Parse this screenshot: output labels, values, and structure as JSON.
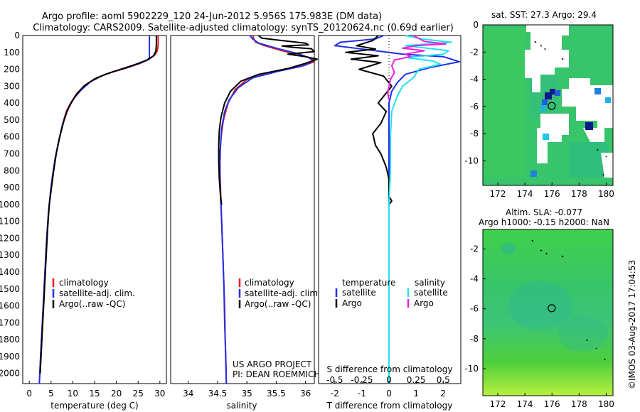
{
  "header": {
    "line1": "Argo profile: aoml 5902229_120 24-Jun-2012 5.956S 175.983E (DM data)",
    "line2": "Climatology: CARS2009. Satellite-adjusted climatology: synTS_20120624.nc (0.69d earlier)"
  },
  "colors": {
    "climatology": "#e81a1a",
    "satellite": "#1f2fe8",
    "argo": "#000000",
    "sal_satellite": "#20e0f0",
    "sal_argo": "#ee22dd"
  },
  "depth_axis": {
    "ticks": [
      0,
      100,
      200,
      300,
      400,
      500,
      600,
      700,
      800,
      900,
      1000,
      1100,
      1200,
      1300,
      1400,
      1500,
      1600,
      1700,
      1800,
      1900,
      2000
    ],
    "ylim": [
      0,
      2060
    ]
  },
  "chart_data": [
    {
      "type": "line",
      "id": "temperature",
      "xlabel": "temperature (deg C)",
      "xlim": [
        -1.5,
        31.5
      ],
      "xticks": [
        0,
        5,
        10,
        15,
        20,
        25,
        30
      ],
      "xtick_labels": [
        "0",
        "5",
        "10",
        "15",
        "20",
        "25",
        "30"
      ],
      "legend": [
        "climatology",
        "satellite-adj. clim.",
        "Argo(..raw -QC)"
      ],
      "series": [
        {
          "name": "climatology",
          "color": "#e81a1a",
          "points": [
            [
              29.6,
              0
            ],
            [
              29.6,
              60
            ],
            [
              29.4,
              90
            ],
            [
              29.0,
              110
            ],
            [
              27.8,
              135
            ],
            [
              25.5,
              165
            ],
            [
              22.0,
              195
            ],
            [
              18.5,
              220
            ],
            [
              15.5,
              250
            ],
            [
              13.0,
              290
            ],
            [
              11.0,
              340
            ],
            [
              9.5,
              400
            ],
            [
              8.5,
              450
            ],
            [
              7.7,
              520
            ],
            [
              6.8,
              620
            ],
            [
              6.0,
              720
            ],
            [
              5.4,
              820
            ],
            [
              4.9,
              920
            ],
            [
              4.4,
              1050
            ],
            [
              4.0,
              1200
            ],
            [
              3.6,
              1400
            ],
            [
              3.2,
              1600
            ],
            [
              2.8,
              1800
            ],
            [
              2.5,
              1950
            ],
            [
              2.3,
              2060
            ]
          ]
        },
        {
          "name": "satellite",
          "color": "#1f2fe8",
          "points": [
            [
              27.6,
              0
            ],
            [
              27.6,
              40
            ],
            [
              27.6,
              100
            ],
            [
              27.6,
              140
            ],
            [
              26.0,
              158
            ],
            [
              23.0,
              185
            ],
            [
              19.5,
              212
            ],
            [
              16.5,
              240
            ],
            [
              14.0,
              275
            ],
            [
              12.0,
              320
            ],
            [
              10.3,
              370
            ],
            [
              9.2,
              420
            ],
            [
              8.5,
              460
            ],
            [
              7.6,
              530
            ],
            [
              6.8,
              620
            ],
            [
              6.0,
              720
            ],
            [
              5.4,
              820
            ],
            [
              4.9,
              920
            ],
            [
              4.4,
              1050
            ],
            [
              4.0,
              1200
            ],
            [
              3.6,
              1400
            ],
            [
              3.2,
              1600
            ],
            [
              2.8,
              1800
            ],
            [
              2.5,
              1950
            ],
            [
              2.3,
              2060
            ]
          ]
        },
        {
          "name": "Argo",
          "color": "#000000",
          "points": [
            [
              29.2,
              0
            ],
            [
              29.2,
              50
            ],
            [
              29.1,
              90
            ],
            [
              28.6,
              120
            ],
            [
              27.0,
              145
            ],
            [
              24.5,
              170
            ],
            [
              21.0,
              200
            ],
            [
              17.5,
              230
            ],
            [
              14.8,
              260
            ],
            [
              12.5,
              300
            ],
            [
              10.8,
              350
            ],
            [
              9.6,
              400
            ],
            [
              8.8,
              440
            ],
            [
              7.9,
              510
            ],
            [
              7.0,
              600
            ],
            [
              6.2,
              700
            ],
            [
              5.6,
              800
            ],
            [
              5.1,
              900
            ],
            [
              4.6,
              1000
            ],
            [
              4.2,
              1150
            ],
            [
              3.8,
              1350
            ],
            [
              3.4,
              1550
            ],
            [
              3.0,
              1750
            ],
            [
              2.6,
              1950
            ],
            [
              2.5,
              2000
            ]
          ]
        }
      ]
    },
    {
      "type": "line",
      "id": "salinity",
      "xlabel": "salinity",
      "xlim": [
        33.7,
        36.15
      ],
      "xticks": [
        34,
        34.5,
        35,
        35.5,
        36
      ],
      "xtick_labels": [
        "34",
        "34.5",
        "35",
        "35.5",
        "36"
      ],
      "legend": [
        "climatology",
        "satellite-adj. clim.",
        "Argo(..raw -QC)"
      ],
      "credit": [
        "US ARGO PROJECT",
        "PI: DEAN ROEMMICH"
      ],
      "series": [
        {
          "name": "climatology",
          "color": "#e81a1a",
          "points": [
            [
              35.1,
              0
            ],
            [
              35.12,
              20
            ],
            [
              35.15,
              40
            ],
            [
              35.3,
              60
            ],
            [
              35.6,
              90
            ],
            [
              36.05,
              130
            ],
            [
              36.15,
              155
            ],
            [
              35.9,
              185
            ],
            [
              35.4,
              220
            ],
            [
              35.0,
              260
            ],
            [
              34.8,
              320
            ],
            [
              34.68,
              400
            ],
            [
              34.6,
              500
            ],
            [
              34.56,
              600
            ],
            [
              34.54,
              700
            ],
            [
              34.54,
              800
            ],
            [
              34.55,
              900
            ],
            [
              34.56,
              1000
            ],
            [
              34.58,
              1200
            ],
            [
              34.6,
              1400
            ],
            [
              34.62,
              1600
            ],
            [
              34.63,
              1800
            ],
            [
              34.65,
              2060
            ]
          ]
        },
        {
          "name": "satellite",
          "color": "#1f2fe8",
          "points": [
            [
              35.05,
              0
            ],
            [
              35.1,
              20
            ],
            [
              35.2,
              45
            ],
            [
              35.5,
              75
            ],
            [
              35.9,
              110
            ],
            [
              36.15,
              145
            ],
            [
              36.0,
              175
            ],
            [
              35.55,
              210
            ],
            [
              35.1,
              250
            ],
            [
              34.85,
              310
            ],
            [
              34.7,
              380
            ],
            [
              34.62,
              450
            ],
            [
              34.57,
              550
            ],
            [
              34.55,
              650
            ],
            [
              34.54,
              750
            ],
            [
              34.54,
              850
            ],
            [
              34.55,
              950
            ],
            [
              34.57,
              1100
            ],
            [
              34.59,
              1300
            ],
            [
              34.61,
              1500
            ],
            [
              34.62,
              1700
            ],
            [
              34.64,
              1900
            ],
            [
              34.65,
              2060
            ]
          ]
        },
        {
          "name": "Argo",
          "color": "#000000",
          "points": [
            [
              35.2,
              0
            ],
            [
              35.25,
              15
            ],
            [
              35.6,
              30
            ],
            [
              36.0,
              45
            ],
            [
              36.05,
              55
            ],
            [
              35.6,
              62
            ],
            [
              35.8,
              70
            ],
            [
              36.1,
              78
            ],
            [
              36.15,
              95
            ],
            [
              35.7,
              110
            ],
            [
              36.0,
              125
            ],
            [
              36.2,
              140
            ],
            [
              36.0,
              165
            ],
            [
              35.7,
              195
            ],
            [
              35.2,
              230
            ],
            [
              34.9,
              270
            ],
            [
              34.72,
              330
            ],
            [
              34.62,
              400
            ],
            [
              34.56,
              480
            ],
            [
              34.53,
              560
            ],
            [
              34.52,
              650
            ],
            [
              34.52,
              750
            ],
            [
              34.53,
              850
            ],
            [
              34.55,
              950
            ],
            [
              34.57,
              1000
            ]
          ]
        }
      ]
    },
    {
      "type": "line",
      "id": "differences",
      "xlim": [
        -2.6,
        2.65
      ],
      "xlabel_bottom": "T difference from climatology",
      "xlabel_top": "S difference from climatology",
      "xticks_T": [
        -2,
        -1,
        0,
        1,
        2
      ],
      "xticks_S": [
        -0.5,
        -0.25,
        0,
        0.25,
        0.5
      ],
      "xticks_S_labels": [
        "-0.5",
        "-0.25",
        "0",
        "0.25",
        "0.5"
      ],
      "legend_temperature_title": "temperature",
      "legend_salinity_title": "salinity",
      "legend_items": [
        "satellite",
        "Argo"
      ],
      "series": [
        {
          "name": "T satellite",
          "color": "#1f2fe8",
          "points": [
            [
              -0.2,
              0
            ],
            [
              -0.5,
              20
            ],
            [
              -1.8,
              40
            ],
            [
              -2.0,
              60
            ],
            [
              -0.5,
              90
            ],
            [
              0.5,
              110
            ],
            [
              2.0,
              125
            ],
            [
              2.6,
              155
            ],
            [
              1.5,
              190
            ],
            [
              0.6,
              230
            ],
            [
              0.3,
              280
            ],
            [
              0.1,
              330
            ],
            [
              0.0,
              400
            ],
            [
              0.0,
              600
            ],
            [
              0.0,
              900
            ],
            [
              0.0,
              1200
            ],
            [
              0.0,
              1600
            ],
            [
              0.0,
              2060
            ]
          ]
        },
        {
          "name": "T Argo",
          "color": "#000000",
          "points": [
            [
              -0.4,
              0
            ],
            [
              -0.6,
              30
            ],
            [
              -1.2,
              60
            ],
            [
              -0.5,
              80
            ],
            [
              -1.6,
              100
            ],
            [
              -0.4,
              120
            ],
            [
              -1.4,
              140
            ],
            [
              -0.3,
              160
            ],
            [
              -1.1,
              200
            ],
            [
              -0.2,
              240
            ],
            [
              0.1,
              300
            ],
            [
              -0.2,
              360
            ],
            [
              -0.4,
              400
            ],
            [
              -0.1,
              450
            ],
            [
              -0.3,
              520
            ],
            [
              -0.6,
              580
            ],
            [
              -0.5,
              650
            ],
            [
              -0.3,
              700
            ],
            [
              -0.1,
              780
            ],
            [
              0.0,
              850
            ],
            [
              0.0,
              950
            ],
            [
              0.1,
              980
            ],
            [
              0.0,
              1000
            ]
          ]
        },
        {
          "name": "S satellite",
          "color": "#20e0f0",
          "points": [
            [
              0.6,
              0
            ],
            [
              1.2,
              20
            ],
            [
              2.3,
              40
            ],
            [
              0.6,
              60
            ],
            [
              2.2,
              90
            ],
            [
              2.0,
              110
            ],
            [
              0.6,
              130
            ],
            [
              1.6,
              150
            ],
            [
              1.9,
              170
            ],
            [
              1.1,
              200
            ],
            [
              0.9,
              250
            ],
            [
              0.5,
              300
            ],
            [
              0.3,
              360
            ],
            [
              0.1,
              450
            ],
            [
              0.05,
              600
            ],
            [
              0.05,
              800
            ],
            [
              0.0,
              1000
            ],
            [
              0.0,
              1200
            ],
            [
              0.0,
              1500
            ],
            [
              0.0,
              1800
            ],
            [
              0.0,
              2060
            ]
          ]
        },
        {
          "name": "S Argo",
          "color": "#ee22dd",
          "points": [
            [
              0.9,
              0
            ],
            [
              1.3,
              35
            ],
            [
              2.1,
              50
            ],
            [
              1.0,
              60
            ],
            [
              0.5,
              75
            ],
            [
              1.3,
              90
            ],
            [
              0.6,
              110
            ],
            [
              0.8,
              125
            ],
            [
              0.2,
              145
            ],
            [
              0.1,
              180
            ],
            [
              0.2,
              220
            ],
            [
              0.05,
              260
            ],
            [
              0.0,
              300
            ],
            [
              -0.05,
              340
            ],
            [
              0.0,
              380
            ]
          ]
        }
      ]
    }
  ],
  "maps": {
    "sst": {
      "title": "sat. SST: 27.3 Argo: 29.4",
      "xticks": [
        172,
        174,
        176,
        178,
        180
      ],
      "yticks": [
        0,
        -2,
        -4,
        -6,
        -8,
        -10
      ],
      "xlim": [
        170.9,
        180.5
      ],
      "ylim": [
        0,
        -11.8
      ],
      "argo_position": [
        175.98,
        -5.96
      ]
    },
    "sla": {
      "title_line1": "Altim. SLA: -0.077",
      "title_line2": "Argo h1000: -0.15 h2000: NaN",
      "xticks": [
        172,
        174,
        176,
        178,
        180
      ],
      "yticks": [
        -2,
        -4,
        -6,
        -8,
        -10
      ],
      "xlim": [
        170.9,
        180.5
      ],
      "ylim": [
        -0.7,
        -11.8
      ],
      "argo_position": [
        175.98,
        -5.96
      ]
    }
  },
  "footer": {
    "stamp": "©IMOS 03-Aug-2017 17:04:53"
  }
}
